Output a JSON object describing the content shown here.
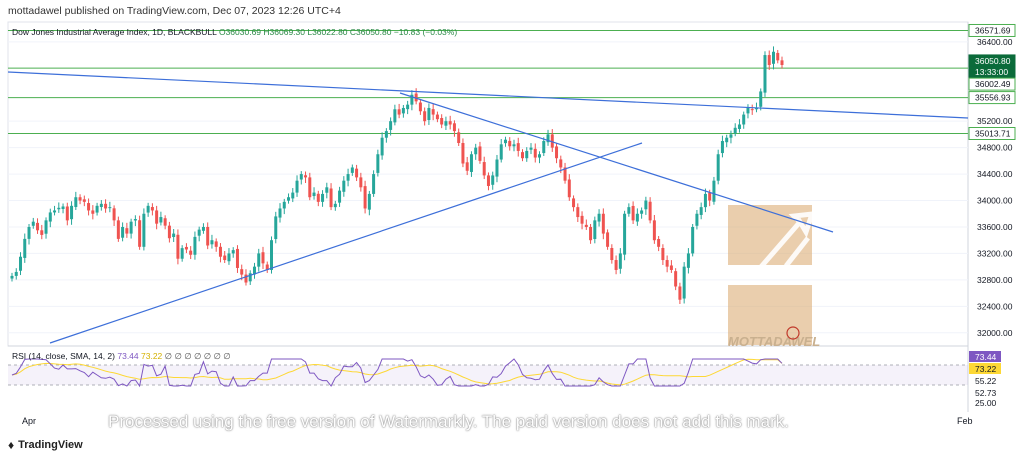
{
  "header": {
    "publisher": "mottadawel published on TradingView.com, Dec 07, 2023 12:26 UTC+4"
  },
  "legend": {
    "symbol": "Dow Jones Industrial Average Index, 1D, BLACKBULL",
    "ohlc": "O36030.69  H36069.30  L36022.80  C36050.80  −10.83 (−0.03%)"
  },
  "rsi_legend": {
    "label": "RSI (14, close, SMA, 14, 2)",
    "rsi_value": "73.44",
    "sma_value": "73.22",
    "extra": "∅ ∅ ∅ ∅ ∅ ∅ ∅"
  },
  "price_axis": {
    "ticks": [
      "36400.00",
      "35200.00",
      "34800.00",
      "34400.00",
      "34000.00",
      "33600.00",
      "33200.00",
      "32800.00",
      "32400.00",
      "32000.00"
    ],
    "labels": [
      {
        "text": "36571.69",
        "bg": "#ffffff",
        "fg": "#131722",
        "border": "#4caf50"
      },
      {
        "text": "36050.80",
        "bg": "#0b6b3a",
        "fg": "#ffffff",
        "border": "#0b6b3a"
      },
      {
        "text": "13:33:00",
        "bg": "#0b6b3a",
        "fg": "#ffffff",
        "border": "#0b6b3a"
      },
      {
        "text": "36002.49",
        "bg": "#ffffff",
        "fg": "#131722",
        "border": "#4caf50"
      },
      {
        "text": "35556.93",
        "bg": "#ffffff",
        "fg": "#131722",
        "border": "#4caf50"
      },
      {
        "text": "35013.71",
        "bg": "#ffffff",
        "fg": "#131722",
        "border": "#4caf50"
      }
    ]
  },
  "rsi_axis": {
    "labels": [
      {
        "text": "73.44",
        "bg": "#7e57c2",
        "fg": "#ffffff"
      },
      {
        "text": "73.22",
        "bg": "#fdd835",
        "fg": "#131722"
      },
      {
        "text": "55.22",
        "bg": "",
        "fg": "#131722"
      },
      {
        "text": "52.73",
        "bg": "",
        "fg": "#131722"
      },
      {
        "text": "25.00",
        "bg": "",
        "fg": "#131722"
      }
    ]
  },
  "time_axis": {
    "labels": [
      "Apr",
      "Feb"
    ]
  },
  "watermark": {
    "brand": "MOTTADAWEL",
    "notice": "Processed using the free version of Watermarkly. The paid version does not add this mark."
  },
  "footer": {
    "brand": "TradingView"
  },
  "colors": {
    "up": "#26a69a",
    "down": "#ef5350",
    "hline": "#4caf50",
    "trend": "#3d6fd9",
    "rsi": "#7e57c2",
    "rsi_sma": "#fdd835",
    "wm": "#d8a56a"
  },
  "chart_data": {
    "type": "candlestick",
    "title": "Dow Jones Industrial Average Index, 1D, BLACKBULL",
    "xlabel": "",
    "ylabel": "",
    "ylim": [
      31800,
      36700
    ],
    "horizontal_levels": [
      36571.69,
      36002.49,
      35556.93,
      35013.71
    ],
    "closes": [
      32860,
      32920,
      33150,
      33420,
      33600,
      33680,
      33550,
      33480,
      33700,
      33820,
      33850,
      33890,
      33910,
      33700,
      33920,
      34050,
      34000,
      33980,
      33850,
      33800,
      33920,
      33950,
      33880,
      33900,
      33700,
      33420,
      33600,
      33500,
      33680,
      33720,
      33300,
      33800,
      33920,
      33850,
      33650,
      33750,
      33620,
      33430,
      33500,
      33120,
      33280,
      33260,
      33180,
      33450,
      33560,
      33600,
      33320,
      33400,
      33300,
      33150,
      33100,
      33200,
      33250,
      32980,
      32880,
      32760,
      32900,
      33000,
      33200,
      33050,
      32950,
      33400,
      33760,
      33880,
      33980,
      34050,
      34120,
      34300,
      34400,
      34350,
      34050,
      34120,
      33980,
      34100,
      34200,
      33900,
      33950,
      34150,
      34300,
      34400,
      34500,
      34350,
      34200,
      33880,
      34100,
      34400,
      34700,
      34950,
      35050,
      35200,
      35380,
      35300,
      35400,
      35450,
      35600,
      35500,
      35350,
      35200,
      35400,
      35300,
      35230,
      35150,
      35200,
      35150,
      35050,
      34870,
      34560,
      34450,
      34700,
      34800,
      34600,
      34380,
      34220,
      34380,
      34620,
      34850,
      34920,
      34820,
      34850,
      34750,
      34640,
      34750,
      34800,
      34650,
      34700,
      34900,
      35000,
      34800,
      34640,
      34500,
      34300,
      34050,
      33900,
      33750,
      33650,
      33600,
      33400,
      33700,
      33800,
      33500,
      33300,
      33100,
      32950,
      33200,
      33800,
      33900,
      33700,
      33800,
      33850,
      34000,
      33700,
      33400,
      33300,
      33100,
      33000,
      32950,
      32700,
      32500,
      33000,
      33200,
      33600,
      33800,
      33900,
      34100,
      34000,
      34300,
      34700,
      34900,
      34950,
      35000,
      35100,
      35150,
      35300,
      35400,
      35380,
      35400,
      35650,
      36200,
      36050,
      36250,
      36120,
      36050
    ],
    "y_ticks": [
      36400,
      35200,
      34800,
      34400,
      34000,
      33600,
      33200,
      32800,
      32400,
      32000
    ],
    "rsi": {
      "label": "RSI (14, close, SMA, 14, 2)",
      "last_rsi": 73.44,
      "last_sma": 73.22,
      "levels": [
        70,
        30
      ]
    }
  }
}
